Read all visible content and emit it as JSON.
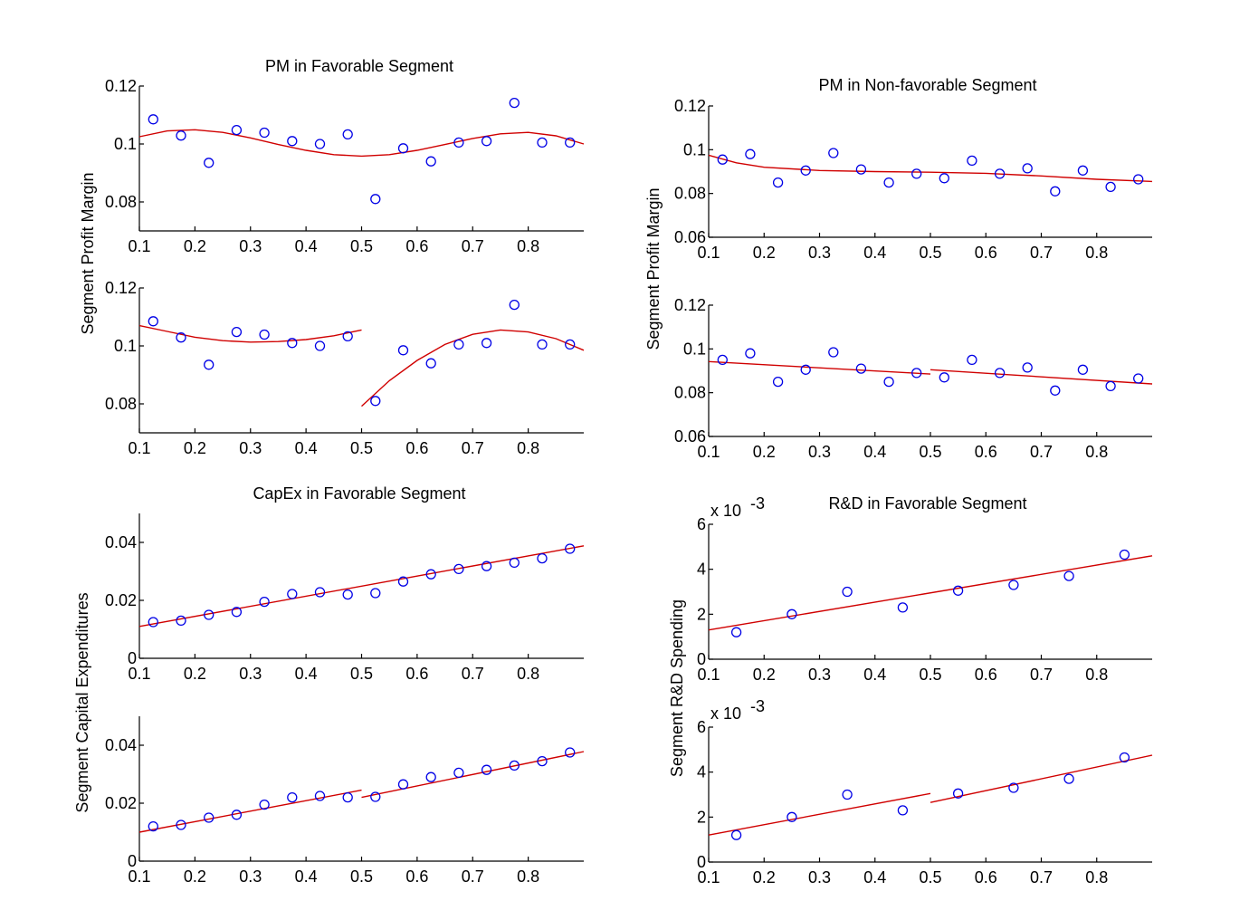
{
  "figure": {
    "ylabels": [
      "Segment Profit Margin",
      "Segment Profit Margin",
      "Segment Capital Expenditures",
      "Segment R&D Spending"
    ]
  },
  "chart_data": [
    {
      "type": "scatter",
      "title": "PM in Favorable Segment",
      "xlim": [
        0.1,
        0.9
      ],
      "ylim": [
        0.07,
        0.12
      ],
      "xticks": [
        0.1,
        0.2,
        0.3,
        0.4,
        0.5,
        0.6,
        0.7,
        0.8
      ],
      "xtick_labels": [
        "0.1",
        "0.2",
        "0.3",
        "0.4",
        "0.5",
        "0.6",
        "0.7",
        "0.8"
      ],
      "yticks": [
        0.08,
        0.1,
        0.12
      ],
      "ytick_labels": [
        "0.08",
        "0.1",
        "0.12"
      ],
      "x": [
        0.125,
        0.175,
        0.225,
        0.275,
        0.325,
        0.375,
        0.425,
        0.475,
        0.525,
        0.575,
        0.625,
        0.675,
        0.725,
        0.775,
        0.825,
        0.875
      ],
      "y": [
        0.1085,
        0.1029,
        0.0935,
        0.1048,
        0.1039,
        0.101,
        0.1,
        0.1033,
        0.081,
        0.0985,
        0.094,
        0.1005,
        0.101,
        0.1142,
        0.1005,
        0.1005
      ],
      "fits": [
        {
          "x": [
            0.1,
            0.15,
            0.2,
            0.25,
            0.3,
            0.35,
            0.4,
            0.45,
            0.5,
            0.55,
            0.6,
            0.65,
            0.7,
            0.75,
            0.8,
            0.85,
            0.9
          ],
          "y": [
            0.1025,
            0.1045,
            0.1049,
            0.104,
            0.1021,
            0.0998,
            0.0978,
            0.0963,
            0.0958,
            0.0963,
            0.0978,
            0.0998,
            0.1019,
            0.1035,
            0.104,
            0.1028,
            0.1
          ]
        }
      ]
    },
    {
      "type": "scatter",
      "title": "",
      "xlim": [
        0.1,
        0.9
      ],
      "ylim": [
        0.07,
        0.12
      ],
      "xticks": [
        0.1,
        0.2,
        0.3,
        0.4,
        0.5,
        0.6,
        0.7,
        0.8
      ],
      "xtick_labels": [
        "0.1",
        "0.2",
        "0.3",
        "0.4",
        "0.5",
        "0.6",
        "0.7",
        "0.8"
      ],
      "yticks": [
        0.08,
        0.1,
        0.12
      ],
      "ytick_labels": [
        "0.08",
        "0.1",
        "0.12"
      ],
      "x": [
        0.125,
        0.175,
        0.225,
        0.275,
        0.325,
        0.375,
        0.425,
        0.475,
        0.525,
        0.575,
        0.625,
        0.675,
        0.725,
        0.775,
        0.825,
        0.875
      ],
      "y": [
        0.1085,
        0.1029,
        0.0935,
        0.1048,
        0.1039,
        0.101,
        0.1,
        0.1033,
        0.081,
        0.0985,
        0.094,
        0.1005,
        0.101,
        0.1142,
        0.1005,
        0.1005
      ],
      "fits": [
        {
          "x": [
            0.1,
            0.15,
            0.2,
            0.25,
            0.3,
            0.35,
            0.4,
            0.45,
            0.5
          ],
          "y": [
            0.107,
            0.105,
            0.103,
            0.1018,
            0.1013,
            0.1015,
            0.1022,
            0.1035,
            0.1055
          ]
        },
        {
          "x": [
            0.5,
            0.55,
            0.6,
            0.65,
            0.7,
            0.75,
            0.8,
            0.85,
            0.9
          ],
          "y": [
            0.0792,
            0.088,
            0.095,
            0.1005,
            0.104,
            0.1055,
            0.1048,
            0.1025,
            0.0985
          ]
        }
      ]
    },
    {
      "type": "scatter",
      "title": "CapEx in Favorable Segment",
      "xlim": [
        0.1,
        0.9
      ],
      "ylim": [
        0,
        0.05
      ],
      "xticks": [
        0.1,
        0.2,
        0.3,
        0.4,
        0.5,
        0.6,
        0.7,
        0.8
      ],
      "xtick_labels": [
        "0.1",
        "0.2",
        "0.3",
        "0.4",
        "0.5",
        "0.6",
        "0.7",
        "0.8"
      ],
      "yticks": [
        0,
        0.02,
        0.04
      ],
      "ytick_labels": [
        "0",
        "0.02",
        "0.04"
      ],
      "x": [
        0.125,
        0.175,
        0.225,
        0.275,
        0.325,
        0.375,
        0.425,
        0.475,
        0.525,
        0.575,
        0.625,
        0.675,
        0.725,
        0.775,
        0.825,
        0.875
      ],
      "y": [
        0.0125,
        0.013,
        0.015,
        0.016,
        0.0195,
        0.0222,
        0.0228,
        0.022,
        0.0225,
        0.0265,
        0.029,
        0.0308,
        0.0318,
        0.033,
        0.0345,
        0.0378
      ],
      "fits": [
        {
          "x": [
            0.1,
            0.9
          ],
          "y": [
            0.011,
            0.0388
          ]
        }
      ]
    },
    {
      "type": "scatter",
      "title": "",
      "xlim": [
        0.1,
        0.9
      ],
      "ylim": [
        0,
        0.05
      ],
      "xticks": [
        0.1,
        0.2,
        0.3,
        0.4,
        0.5,
        0.6,
        0.7,
        0.8
      ],
      "xtick_labels": [
        "0.1",
        "0.2",
        "0.3",
        "0.4",
        "0.5",
        "0.6",
        "0.7",
        "0.8"
      ],
      "yticks": [
        0,
        0.02,
        0.04
      ],
      "ytick_labels": [
        "0",
        "0.02",
        "0.04"
      ],
      "x": [
        0.125,
        0.175,
        0.225,
        0.275,
        0.325,
        0.375,
        0.425,
        0.475,
        0.525,
        0.575,
        0.625,
        0.675,
        0.725,
        0.775,
        0.825,
        0.875
      ],
      "y": [
        0.012,
        0.0125,
        0.015,
        0.016,
        0.0195,
        0.022,
        0.0225,
        0.022,
        0.0222,
        0.0265,
        0.029,
        0.0305,
        0.0315,
        0.033,
        0.0345,
        0.0375
      ],
      "fits": [
        {
          "x": [
            0.1,
            0.5
          ],
          "y": [
            0.01,
            0.0245
          ]
        },
        {
          "x": [
            0.5,
            0.9
          ],
          "y": [
            0.022,
            0.0378
          ]
        }
      ]
    },
    {
      "type": "scatter",
      "title": "PM in Non-favorable Segment",
      "xlim": [
        0.1,
        0.9
      ],
      "ylim": [
        0.06,
        0.12
      ],
      "xticks": [
        0.1,
        0.2,
        0.3,
        0.4,
        0.5,
        0.6,
        0.7,
        0.8
      ],
      "xtick_labels": [
        "0.1",
        "0.2",
        "0.3",
        "0.4",
        "0.5",
        "0.6",
        "0.7",
        "0.8"
      ],
      "yticks": [
        0.06,
        0.08,
        0.1,
        0.12
      ],
      "ytick_labels": [
        "0.06",
        "0.08",
        "0.1",
        "0.12"
      ],
      "x": [
        0.125,
        0.175,
        0.225,
        0.275,
        0.325,
        0.375,
        0.425,
        0.475,
        0.525,
        0.575,
        0.625,
        0.675,
        0.725,
        0.775,
        0.825,
        0.875
      ],
      "y": [
        0.0955,
        0.098,
        0.085,
        0.0905,
        0.0985,
        0.091,
        0.085,
        0.089,
        0.087,
        0.095,
        0.089,
        0.0915,
        0.081,
        0.0905,
        0.083,
        0.0865
      ],
      "fits": [
        {
          "x": [
            0.1,
            0.15,
            0.2,
            0.3,
            0.4,
            0.5,
            0.6,
            0.7,
            0.8,
            0.9
          ],
          "y": [
            0.0975,
            0.094,
            0.092,
            0.0905,
            0.09,
            0.0897,
            0.0892,
            0.088,
            0.0865,
            0.0855
          ]
        }
      ]
    },
    {
      "type": "scatter",
      "title": "",
      "xlim": [
        0.1,
        0.9
      ],
      "ylim": [
        0.06,
        0.12
      ],
      "xticks": [
        0.1,
        0.2,
        0.3,
        0.4,
        0.5,
        0.6,
        0.7,
        0.8
      ],
      "xtick_labels": [
        "0.1",
        "0.2",
        "0.3",
        "0.4",
        "0.5",
        "0.6",
        "0.7",
        "0.8"
      ],
      "yticks": [
        0.06,
        0.08,
        0.1,
        0.12
      ],
      "ytick_labels": [
        "0.06",
        "0.08",
        "0.1",
        "0.12"
      ],
      "x": [
        0.125,
        0.175,
        0.225,
        0.275,
        0.325,
        0.375,
        0.425,
        0.475,
        0.525,
        0.575,
        0.625,
        0.675,
        0.725,
        0.775,
        0.825,
        0.875
      ],
      "y": [
        0.095,
        0.098,
        0.085,
        0.0905,
        0.0985,
        0.091,
        0.085,
        0.089,
        0.087,
        0.095,
        0.089,
        0.0915,
        0.081,
        0.0905,
        0.083,
        0.0865
      ],
      "fits": [
        {
          "x": [
            0.1,
            0.5
          ],
          "y": [
            0.0942,
            0.0885
          ]
        },
        {
          "x": [
            0.5,
            0.9
          ],
          "y": [
            0.0905,
            0.084
          ]
        }
      ]
    },
    {
      "type": "scatter",
      "title": "R&D in Favorable Segment",
      "xlim": [
        0.1,
        0.9
      ],
      "ylim": [
        0,
        6
      ],
      "exponent_label": "x 10",
      "exponent_power": "-3",
      "xticks": [
        0.1,
        0.2,
        0.3,
        0.4,
        0.5,
        0.6,
        0.7,
        0.8
      ],
      "xtick_labels": [
        "0.1",
        "0.2",
        "0.3",
        "0.4",
        "0.5",
        "0.6",
        "0.7",
        "0.8"
      ],
      "yticks": [
        0,
        2,
        4,
        6
      ],
      "ytick_labels": [
        "0",
        "2",
        "4",
        "6"
      ],
      "x": [
        0.15,
        0.25,
        0.35,
        0.45,
        0.55,
        0.65,
        0.75,
        0.85
      ],
      "y": [
        1.2,
        2.0,
        3.0,
        2.3,
        3.05,
        3.3,
        3.7,
        4.65
      ],
      "fits": [
        {
          "x": [
            0.1,
            0.9
          ],
          "y": [
            1.3,
            4.6
          ]
        }
      ]
    },
    {
      "type": "scatter",
      "title": "",
      "xlim": [
        0.1,
        0.9
      ],
      "ylim": [
        0,
        6
      ],
      "exponent_label": "x 10",
      "exponent_power": "-3",
      "xticks": [
        0.1,
        0.2,
        0.3,
        0.4,
        0.5,
        0.6,
        0.7,
        0.8
      ],
      "xtick_labels": [
        "0.1",
        "0.2",
        "0.3",
        "0.4",
        "0.5",
        "0.6",
        "0.7",
        "0.8"
      ],
      "yticks": [
        0,
        2,
        4,
        6
      ],
      "ytick_labels": [
        "0",
        "2",
        "4",
        "6"
      ],
      "x": [
        0.15,
        0.25,
        0.35,
        0.45,
        0.55,
        0.65,
        0.75,
        0.85
      ],
      "y": [
        1.2,
        2.0,
        3.0,
        2.3,
        3.05,
        3.3,
        3.7,
        4.65
      ],
      "fits": [
        {
          "x": [
            0.1,
            0.5
          ],
          "y": [
            1.2,
            3.05
          ]
        },
        {
          "x": [
            0.5,
            0.9
          ],
          "y": [
            2.65,
            4.75
          ]
        }
      ]
    }
  ]
}
